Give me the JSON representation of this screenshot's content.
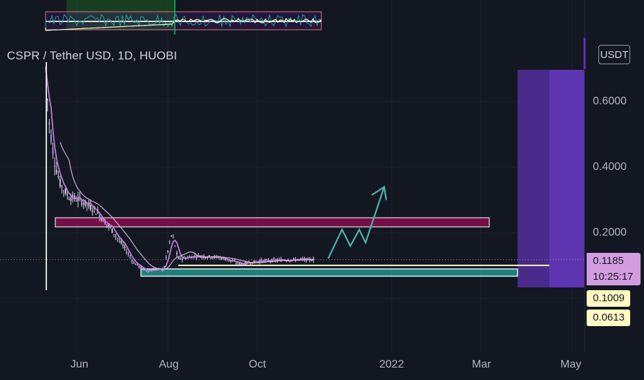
{
  "header": {
    "title": "CSPR / Tether USD, 1D, HUOBI",
    "currency_button": "USDT"
  },
  "price_tags": {
    "last_price": "0.1185",
    "countdown": "10:25:17",
    "level_1": "0.1009",
    "level_2": "0.0613"
  },
  "colors": {
    "background": "#131722",
    "candle": "#d1d4dc",
    "ma_pink": "#c678dd",
    "ma_light": "#e1bee7",
    "resistance_fill": "#880e4f",
    "support_fill": "#26a69a",
    "support_line": "#fff9c4",
    "projection_arrow": "#4db6ac",
    "purple_dark": "#4a2a8a",
    "purple_bright": "#5e35b1",
    "tag_pink": "#d39ce0",
    "tag_yellow": "#fff9c4"
  },
  "chart_data": {
    "type": "candlestick",
    "symbol": "CSPR / Tether USD",
    "timeframe": "1D",
    "exchange": "HUOBI",
    "currency": "USDT",
    "x_ticks": [
      "Jun",
      "Aug",
      "Oct",
      "2022",
      "Mar",
      "May"
    ],
    "y_ticks": [
      0.6,
      0.4,
      0.2
    ],
    "y_tick_labels": [
      "0.6000",
      "0.4000",
      "0.2000"
    ],
    "ylim": [
      -0.1,
      0.7
    ],
    "last_price": 0.1185,
    "horizontal_levels": [
      0.1009,
      0.0613
    ],
    "resistance_zone": [
      0.218,
      0.246
    ],
    "support_zone": [
      0.068,
      0.09
    ],
    "price_path": [
      {
        "date": "2021-05-12",
        "close": 0.7
      },
      {
        "date": "2021-05-14",
        "close": 0.55
      },
      {
        "date": "2021-05-18",
        "close": 0.42
      },
      {
        "date": "2021-05-22",
        "close": 0.35
      },
      {
        "date": "2021-05-28",
        "close": 0.31
      },
      {
        "date": "2021-06-05",
        "close": 0.3
      },
      {
        "date": "2021-06-15",
        "close": 0.27
      },
      {
        "date": "2021-06-25",
        "close": 0.22
      },
      {
        "date": "2021-07-05",
        "close": 0.16
      },
      {
        "date": "2021-07-12",
        "close": 0.11
      },
      {
        "date": "2021-07-20",
        "close": 0.085
      },
      {
        "date": "2021-08-02",
        "close": 0.09
      },
      {
        "date": "2021-08-08",
        "close": 0.2
      },
      {
        "date": "2021-08-12",
        "close": 0.12
      },
      {
        "date": "2021-08-25",
        "close": 0.13
      },
      {
        "date": "2021-09-10",
        "close": 0.125
      },
      {
        "date": "2021-09-25",
        "close": 0.105
      },
      {
        "date": "2021-10-10",
        "close": 0.115
      },
      {
        "date": "2021-10-30",
        "close": 0.118
      },
      {
        "date": "2021-11-15",
        "close": 0.1185
      }
    ]
  }
}
